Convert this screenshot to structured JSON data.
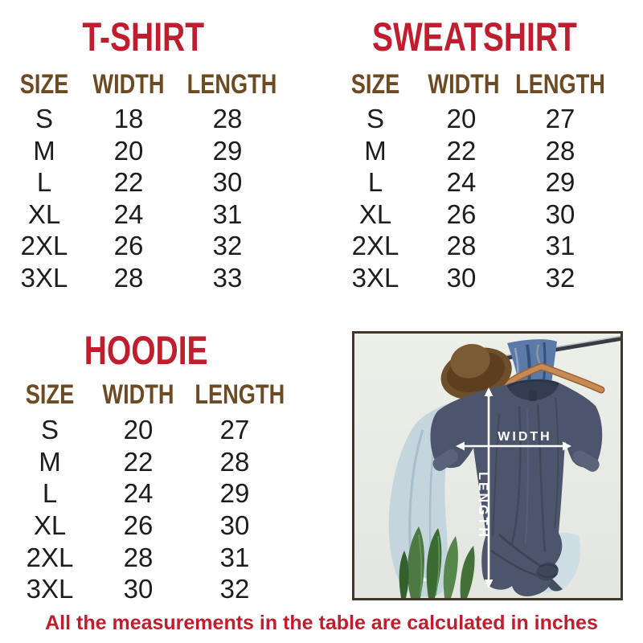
{
  "chart_data": [
    {
      "type": "table",
      "title": "T-SHIRT",
      "columns": [
        "SIZE",
        "WIDTH",
        "LENGTH"
      ],
      "rows": [
        [
          "S",
          "18",
          "28"
        ],
        [
          "M",
          "20",
          "29"
        ],
        [
          "L",
          "22",
          "30"
        ],
        [
          "XL",
          "24",
          "31"
        ],
        [
          "2XL",
          "26",
          "32"
        ],
        [
          "3XL",
          "28",
          "33"
        ]
      ],
      "units": "inches"
    },
    {
      "type": "table",
      "title": "SWEATSHIRT",
      "columns": [
        "SIZE",
        "WIDTH",
        "LENGTH"
      ],
      "rows": [
        [
          "S",
          "20",
          "27"
        ],
        [
          "M",
          "22",
          "28"
        ],
        [
          "L",
          "24",
          "29"
        ],
        [
          "XL",
          "26",
          "30"
        ],
        [
          "2XL",
          "28",
          "31"
        ],
        [
          "3XL",
          "30",
          "32"
        ]
      ],
      "units": "inches"
    },
    {
      "type": "table",
      "title": "HOODIE",
      "columns": [
        "SIZE",
        "WIDTH",
        "LENGTH"
      ],
      "rows": [
        [
          "S",
          "20",
          "27"
        ],
        [
          "M",
          "22",
          "28"
        ],
        [
          "L",
          "24",
          "29"
        ],
        [
          "XL",
          "26",
          "30"
        ],
        [
          "2XL",
          "28",
          "31"
        ],
        [
          "3XL",
          "30",
          "32"
        ]
      ],
      "units": "inches"
    }
  ],
  "photo": {
    "width_label": "WIDTH",
    "length_label": "LENGTH"
  },
  "caption": "All the measurements in the table are calculated in inches",
  "colors": {
    "title_red": "#be1e2d",
    "header_brown": "#6b4a24",
    "data_text": "#1d1d1d",
    "caption_red": "#be1e2d",
    "photo_frame": "#40362a",
    "photo_background": "#e9ebe6",
    "tee_navy": "#4c556b",
    "arrow_white": "#ffffff"
  }
}
